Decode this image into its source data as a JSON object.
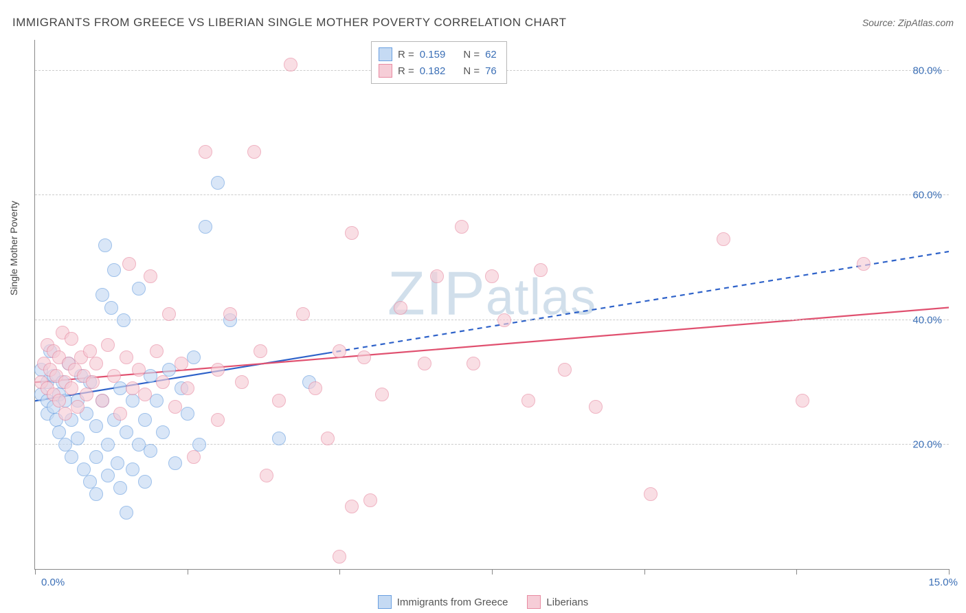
{
  "header": {
    "title": "IMMIGRANTS FROM GREECE VS LIBERIAN SINGLE MOTHER POVERTY CORRELATION CHART",
    "source_prefix": "Source: ",
    "source": "ZipAtlas.com"
  },
  "chart": {
    "type": "scatter",
    "background_color": "#ffffff",
    "grid_color": "#cccccc",
    "axis_color": "#888888",
    "ylabel": "Single Mother Poverty",
    "xlim": [
      0,
      15
    ],
    "ylim": [
      0,
      85
    ],
    "ytick_values": [
      20,
      40,
      60,
      80
    ],
    "ytick_labels": [
      "20.0%",
      "40.0%",
      "60.0%",
      "80.0%"
    ],
    "xtick_positions": [
      0,
      2.5,
      5,
      7.5,
      10,
      12.5,
      15
    ],
    "x_first_label": "0.0%",
    "x_last_label": "15.0%",
    "tick_label_color": "#3b6fb6",
    "tick_fontsize": 15,
    "marker_radius": 9,
    "marker_stroke_width": 1.3,
    "watermark": "ZIPatlas"
  },
  "legend_top": {
    "rows": [
      {
        "swatch_fill": "#c5daf3",
        "swatch_stroke": "#6a9fe0",
        "r_label": "R =",
        "r_value": "0.159",
        "n_label": "N =",
        "n_value": "62"
      },
      {
        "swatch_fill": "#f6cdd7",
        "swatch_stroke": "#e88ba2",
        "r_label": "R =",
        "r_value": "0.182",
        "n_label": "N =",
        "n_value": "76"
      }
    ]
  },
  "legend_bottom": {
    "items": [
      {
        "swatch_fill": "#c5daf3",
        "swatch_stroke": "#6a9fe0",
        "label": "Immigrants from Greece"
      },
      {
        "swatch_fill": "#f6cdd7",
        "swatch_stroke": "#e88ba2",
        "label": "Liberians"
      }
    ]
  },
  "series": [
    {
      "name": "Immigrants from Greece",
      "fill": "#c5daf3",
      "stroke": "#6a9fe0",
      "fill_opacity": 0.65,
      "trend": {
        "color": "#2e62c9",
        "width": 2.2,
        "solid_to_x": 4.8,
        "y_at_0": 27,
        "y_at_15": 51
      },
      "points": [
        [
          0.1,
          32
        ],
        [
          0.1,
          28
        ],
        [
          0.2,
          30
        ],
        [
          0.2,
          27
        ],
        [
          0.2,
          25
        ],
        [
          0.25,
          35
        ],
        [
          0.3,
          26
        ],
        [
          0.3,
          31
        ],
        [
          0.35,
          24
        ],
        [
          0.4,
          28
        ],
        [
          0.4,
          22
        ],
        [
          0.45,
          30
        ],
        [
          0.5,
          20
        ],
        [
          0.5,
          27
        ],
        [
          0.55,
          33
        ],
        [
          0.6,
          24
        ],
        [
          0.6,
          18
        ],
        [
          0.7,
          21
        ],
        [
          0.7,
          27
        ],
        [
          0.75,
          31
        ],
        [
          0.8,
          16
        ],
        [
          0.85,
          25
        ],
        [
          0.9,
          14
        ],
        [
          0.9,
          30
        ],
        [
          1.0,
          23
        ],
        [
          1.0,
          18
        ],
        [
          1.0,
          12
        ],
        [
          1.1,
          44
        ],
        [
          1.1,
          27
        ],
        [
          1.15,
          52
        ],
        [
          1.2,
          20
        ],
        [
          1.2,
          15
        ],
        [
          1.25,
          42
        ],
        [
          1.3,
          24
        ],
        [
          1.3,
          48
        ],
        [
          1.35,
          17
        ],
        [
          1.4,
          13
        ],
        [
          1.4,
          29
        ],
        [
          1.45,
          40
        ],
        [
          1.5,
          22
        ],
        [
          1.5,
          9
        ],
        [
          1.6,
          16
        ],
        [
          1.6,
          27
        ],
        [
          1.7,
          20
        ],
        [
          1.7,
          45
        ],
        [
          1.8,
          24
        ],
        [
          1.8,
          14
        ],
        [
          1.9,
          31
        ],
        [
          1.9,
          19
        ],
        [
          2.0,
          27
        ],
        [
          2.1,
          22
        ],
        [
          2.2,
          32
        ],
        [
          2.3,
          17
        ],
        [
          2.4,
          29
        ],
        [
          2.5,
          25
        ],
        [
          2.6,
          34
        ],
        [
          2.7,
          20
        ],
        [
          2.8,
          55
        ],
        [
          3.0,
          62
        ],
        [
          3.2,
          40
        ],
        [
          4.0,
          21
        ],
        [
          4.5,
          30
        ]
      ]
    },
    {
      "name": "Liberians",
      "fill": "#f6cdd7",
      "stroke": "#e88ba2",
      "fill_opacity": 0.65,
      "trend": {
        "color": "#e0506f",
        "width": 2.2,
        "solid_to_x": 15,
        "y_at_0": 30,
        "y_at_15": 42
      },
      "points": [
        [
          0.1,
          30
        ],
        [
          0.15,
          33
        ],
        [
          0.2,
          36
        ],
        [
          0.2,
          29
        ],
        [
          0.25,
          32
        ],
        [
          0.3,
          28
        ],
        [
          0.3,
          35
        ],
        [
          0.35,
          31
        ],
        [
          0.4,
          34
        ],
        [
          0.4,
          27
        ],
        [
          0.45,
          38
        ],
        [
          0.5,
          30
        ],
        [
          0.5,
          25
        ],
        [
          0.55,
          33
        ],
        [
          0.6,
          29
        ],
        [
          0.6,
          37
        ],
        [
          0.65,
          32
        ],
        [
          0.7,
          26
        ],
        [
          0.75,
          34
        ],
        [
          0.8,
          31
        ],
        [
          0.85,
          28
        ],
        [
          0.9,
          35
        ],
        [
          0.95,
          30
        ],
        [
          1.0,
          33
        ],
        [
          1.1,
          27
        ],
        [
          1.2,
          36
        ],
        [
          1.3,
          31
        ],
        [
          1.4,
          25
        ],
        [
          1.5,
          34
        ],
        [
          1.55,
          49
        ],
        [
          1.6,
          29
        ],
        [
          1.7,
          32
        ],
        [
          1.8,
          28
        ],
        [
          1.9,
          47
        ],
        [
          2.0,
          35
        ],
        [
          2.1,
          30
        ],
        [
          2.2,
          41
        ],
        [
          2.3,
          26
        ],
        [
          2.4,
          33
        ],
        [
          2.5,
          29
        ],
        [
          2.6,
          18
        ],
        [
          2.8,
          67
        ],
        [
          3.0,
          32
        ],
        [
          3.0,
          24
        ],
        [
          3.2,
          41
        ],
        [
          3.4,
          30
        ],
        [
          3.6,
          67
        ],
        [
          3.7,
          35
        ],
        [
          4.0,
          27
        ],
        [
          4.2,
          81
        ],
        [
          4.4,
          41
        ],
        [
          4.6,
          29
        ],
        [
          4.8,
          21
        ],
        [
          5.0,
          35
        ],
        [
          5.0,
          2
        ],
        [
          5.2,
          54
        ],
        [
          5.4,
          34
        ],
        [
          5.5,
          11
        ],
        [
          5.7,
          28
        ],
        [
          6.0,
          42
        ],
        [
          6.4,
          33
        ],
        [
          6.6,
          47
        ],
        [
          7.0,
          55
        ],
        [
          7.2,
          33
        ],
        [
          7.5,
          47
        ],
        [
          7.7,
          40
        ],
        [
          8.1,
          27
        ],
        [
          8.3,
          48
        ],
        [
          8.7,
          32
        ],
        [
          9.2,
          26
        ],
        [
          10.1,
          12
        ],
        [
          11.3,
          53
        ],
        [
          12.6,
          27
        ],
        [
          13.6,
          49
        ],
        [
          5.2,
          10
        ],
        [
          3.8,
          15
        ]
      ]
    }
  ]
}
